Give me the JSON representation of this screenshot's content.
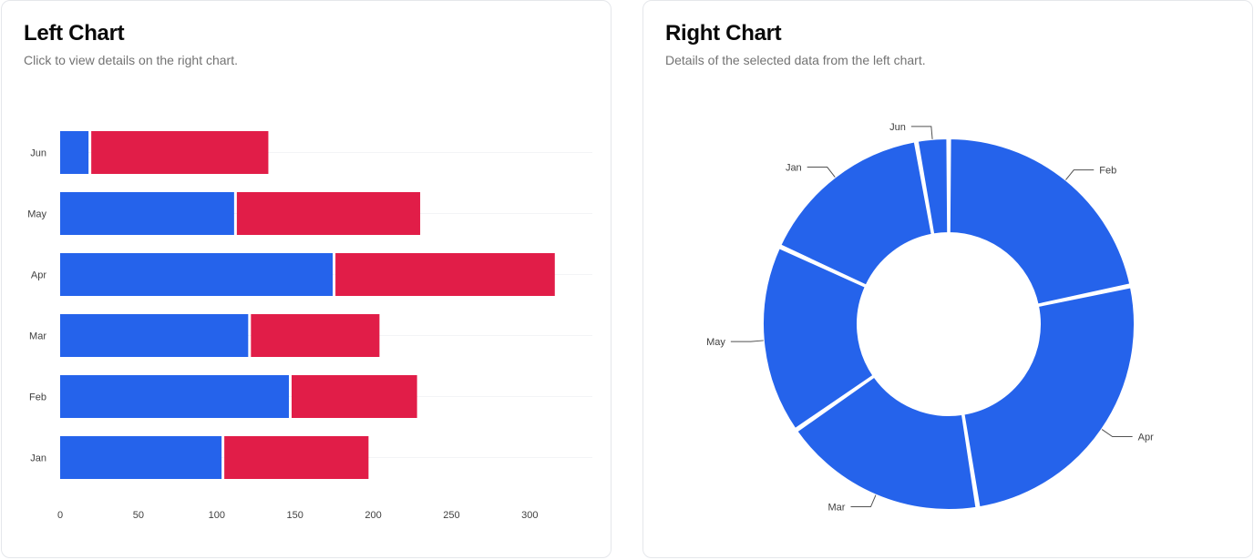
{
  "left_card": {
    "title": "Left Chart",
    "subtitle": "Click to view details on the right chart."
  },
  "right_card": {
    "title": "Right Chart",
    "subtitle": "Details of the selected data from the left chart."
  },
  "colors": {
    "blue": "#2563eb",
    "red": "#e11d48",
    "grid": "#f3f4f6",
    "label": "#404040",
    "leader": "#525252"
  },
  "chart_data": [
    {
      "type": "bar",
      "orientation": "horizontal",
      "stacked": true,
      "categories": [
        "Jan",
        "Feb",
        "Mar",
        "Apr",
        "May",
        "Jun"
      ],
      "series": [
        {
          "values": [
            104,
            147,
            121,
            175,
            112,
            19
          ],
          "color": "#2563eb"
        },
        {
          "values": [
            93,
            81,
            83,
            141,
            118,
            114
          ],
          "color": "#e11d48"
        }
      ],
      "x_ticks": [
        0,
        50,
        100,
        150,
        200,
        250,
        300
      ],
      "xlim": [
        0,
        340
      ],
      "grid": true,
      "legend": "none"
    },
    {
      "type": "pie",
      "donut": true,
      "labels": [
        "Feb",
        "Apr",
        "Mar",
        "May",
        "Jan",
        "Jun"
      ],
      "values": [
        147,
        175,
        121,
        112,
        104,
        19
      ],
      "color": "#2563eb",
      "legend": "none"
    }
  ]
}
